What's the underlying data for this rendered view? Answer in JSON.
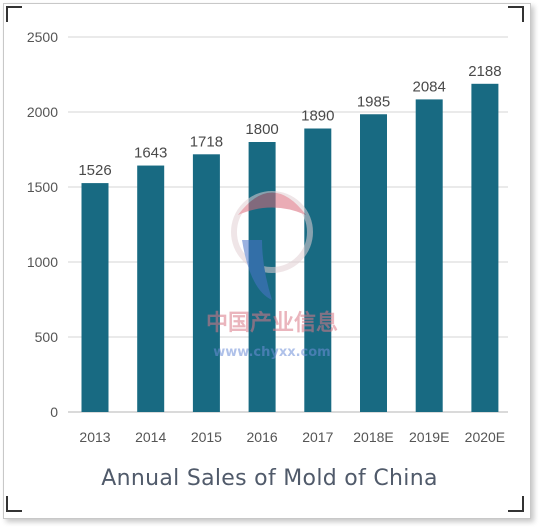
{
  "chart_data": {
    "type": "bar",
    "categories": [
      "2013",
      "2014",
      "2015",
      "2016",
      "2017",
      "2018E",
      "2019E",
      "2020E"
    ],
    "values": [
      1526,
      1643,
      1718,
      1800,
      1890,
      1985,
      2084,
      2188
    ],
    "data_labels": [
      "1526",
      "1643",
      "1718",
      "1800",
      "1890",
      "1985",
      "2084",
      "2188"
    ],
    "y_ticks": [
      "0",
      "500",
      "1000",
      "1500",
      "2000",
      "2500"
    ],
    "ylim": [
      0,
      2500
    ],
    "grid": true,
    "legend": "none",
    "bar_color": "#186a82",
    "title": "Annual Sales of Mold of China",
    "xlabel": "",
    "ylabel": ""
  },
  "watermark": {
    "text": "中国产业信息",
    "url": "www.chyxx.com"
  }
}
